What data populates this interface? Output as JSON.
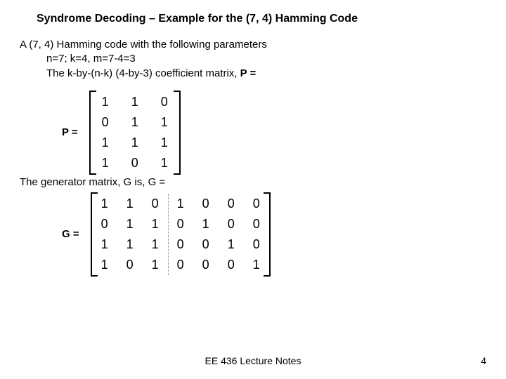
{
  "title": "Syndrome Decoding – Example for the (7, 4) Hamming Code",
  "intro": {
    "l1": "A (7, 4) Hamming code with the following parameters",
    "l2": "n=7; k=4, m=7-4=3",
    "l3_prefix": "The k-by-(n-k) (4-by-3) coefficient matrix, ",
    "l3_bold": "P ="
  },
  "p_label": "P =",
  "P": {
    "rows": [
      [
        "1",
        "1",
        "0"
      ],
      [
        "0",
        "1",
        "1"
      ],
      [
        "1",
        "1",
        "1"
      ],
      [
        "1",
        "0",
        "1"
      ]
    ],
    "cell_fontsize": 18,
    "bracket_color": "#000000"
  },
  "gen_line": "The generator matrix, G is, G =",
  "g_label": "G =",
  "G": {
    "rows": [
      [
        "1",
        "1",
        "0",
        "1",
        "0",
        "0",
        "0"
      ],
      [
        "0",
        "1",
        "1",
        "0",
        "1",
        "0",
        "0"
      ],
      [
        "1",
        "1",
        "1",
        "0",
        "0",
        "1",
        "0"
      ],
      [
        "1",
        "0",
        "1",
        "0",
        "0",
        "0",
        "1"
      ]
    ],
    "divider_after_col": 3,
    "divider_color": "#9c9c9c",
    "cell_fontsize": 18
  },
  "footer": {
    "center": "EE 436 Lecture Notes",
    "page": "4"
  },
  "colors": {
    "bg": "#ffffff",
    "fg": "#000000"
  }
}
